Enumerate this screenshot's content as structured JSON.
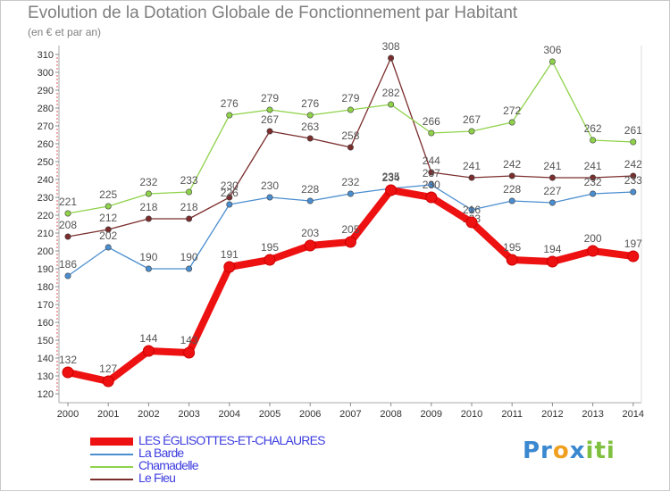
{
  "title": "Evolution de la Dotation Globale de Fonctionnement par Habitant",
  "subtitle": "(en € et par an)",
  "logo": {
    "parts": [
      "Pr",
      "o",
      "x",
      "iti"
    ],
    "colors": [
      "#3a88d0",
      "#f0a020",
      "#3a88d0",
      "#80c040"
    ]
  },
  "chart_data": {
    "type": "line",
    "title": "Evolution de la Dotation Globale de Fonctionnement par Habitant",
    "subtitle": "(en € et par an)",
    "xlabel": "",
    "ylabel": "",
    "ylim": [
      120,
      310
    ],
    "yticks": [
      120,
      130,
      140,
      150,
      160,
      170,
      180,
      190,
      200,
      210,
      220,
      230,
      240,
      250,
      260,
      270,
      280,
      290,
      300,
      310
    ],
    "categories": [
      "2000",
      "2001",
      "2002",
      "2003",
      "2004",
      "2005",
      "2006",
      "2007",
      "2008",
      "2009",
      "2010",
      "2011",
      "2012",
      "2013",
      "2014"
    ],
    "grid": false,
    "legend_position": "bottom-left",
    "series": [
      {
        "name": "Le Fieu",
        "color": "#7b2d2d",
        "values": [
          208,
          212,
          218,
          218,
          230,
          267,
          263,
          258,
          308,
          244,
          241,
          242,
          241,
          241,
          242
        ]
      },
      {
        "name": "Chamadelle",
        "color": "#8fd24a",
        "values": [
          221,
          225,
          232,
          233,
          276,
          279,
          276,
          279,
          282,
          266,
          267,
          272,
          306,
          262,
          261
        ]
      },
      {
        "name": "La Barde",
        "color": "#4a8ed0",
        "values": [
          186,
          202,
          190,
          190,
          226,
          230,
          228,
          232,
          235,
          237,
          223,
          228,
          227,
          232,
          233
        ]
      },
      {
        "name": "LES ÉGLISOTTES-ET-CHALAURES",
        "color": "#ee1111",
        "values": [
          132,
          127,
          144,
          143,
          191,
          195,
          203,
          205,
          234,
          230,
          216,
          195,
          194,
          200,
          197
        ]
      }
    ],
    "data_labels": [
      {
        "series": "Le Fieu",
        "values": [
          "208",
          "212",
          "218",
          "218",
          "230",
          "267",
          "263",
          "258",
          "308",
          "244",
          "241",
          "242",
          "241",
          "241",
          "242"
        ]
      },
      {
        "series": "Chamadelle",
        "values": [
          "221",
          "225",
          "232",
          "233",
          "276",
          "279",
          "276",
          "279",
          "282",
          "266",
          "267",
          "272",
          "306",
          "262",
          "261"
        ]
      },
      {
        "series": "La Barde",
        "values": [
          "186",
          "202",
          "190",
          "190",
          "226",
          "230",
          "228",
          "232",
          "235",
          "237",
          "223",
          "228",
          "227",
          "232",
          "233"
        ]
      },
      {
        "series": "LES ÉGLISOTTES-ET-CHALAURES",
        "values": [
          "132",
          "127",
          "144",
          "143",
          "191",
          "195",
          "203",
          "205",
          "234",
          "230",
          "216",
          "195",
          "194",
          "200",
          "197"
        ]
      }
    ]
  }
}
